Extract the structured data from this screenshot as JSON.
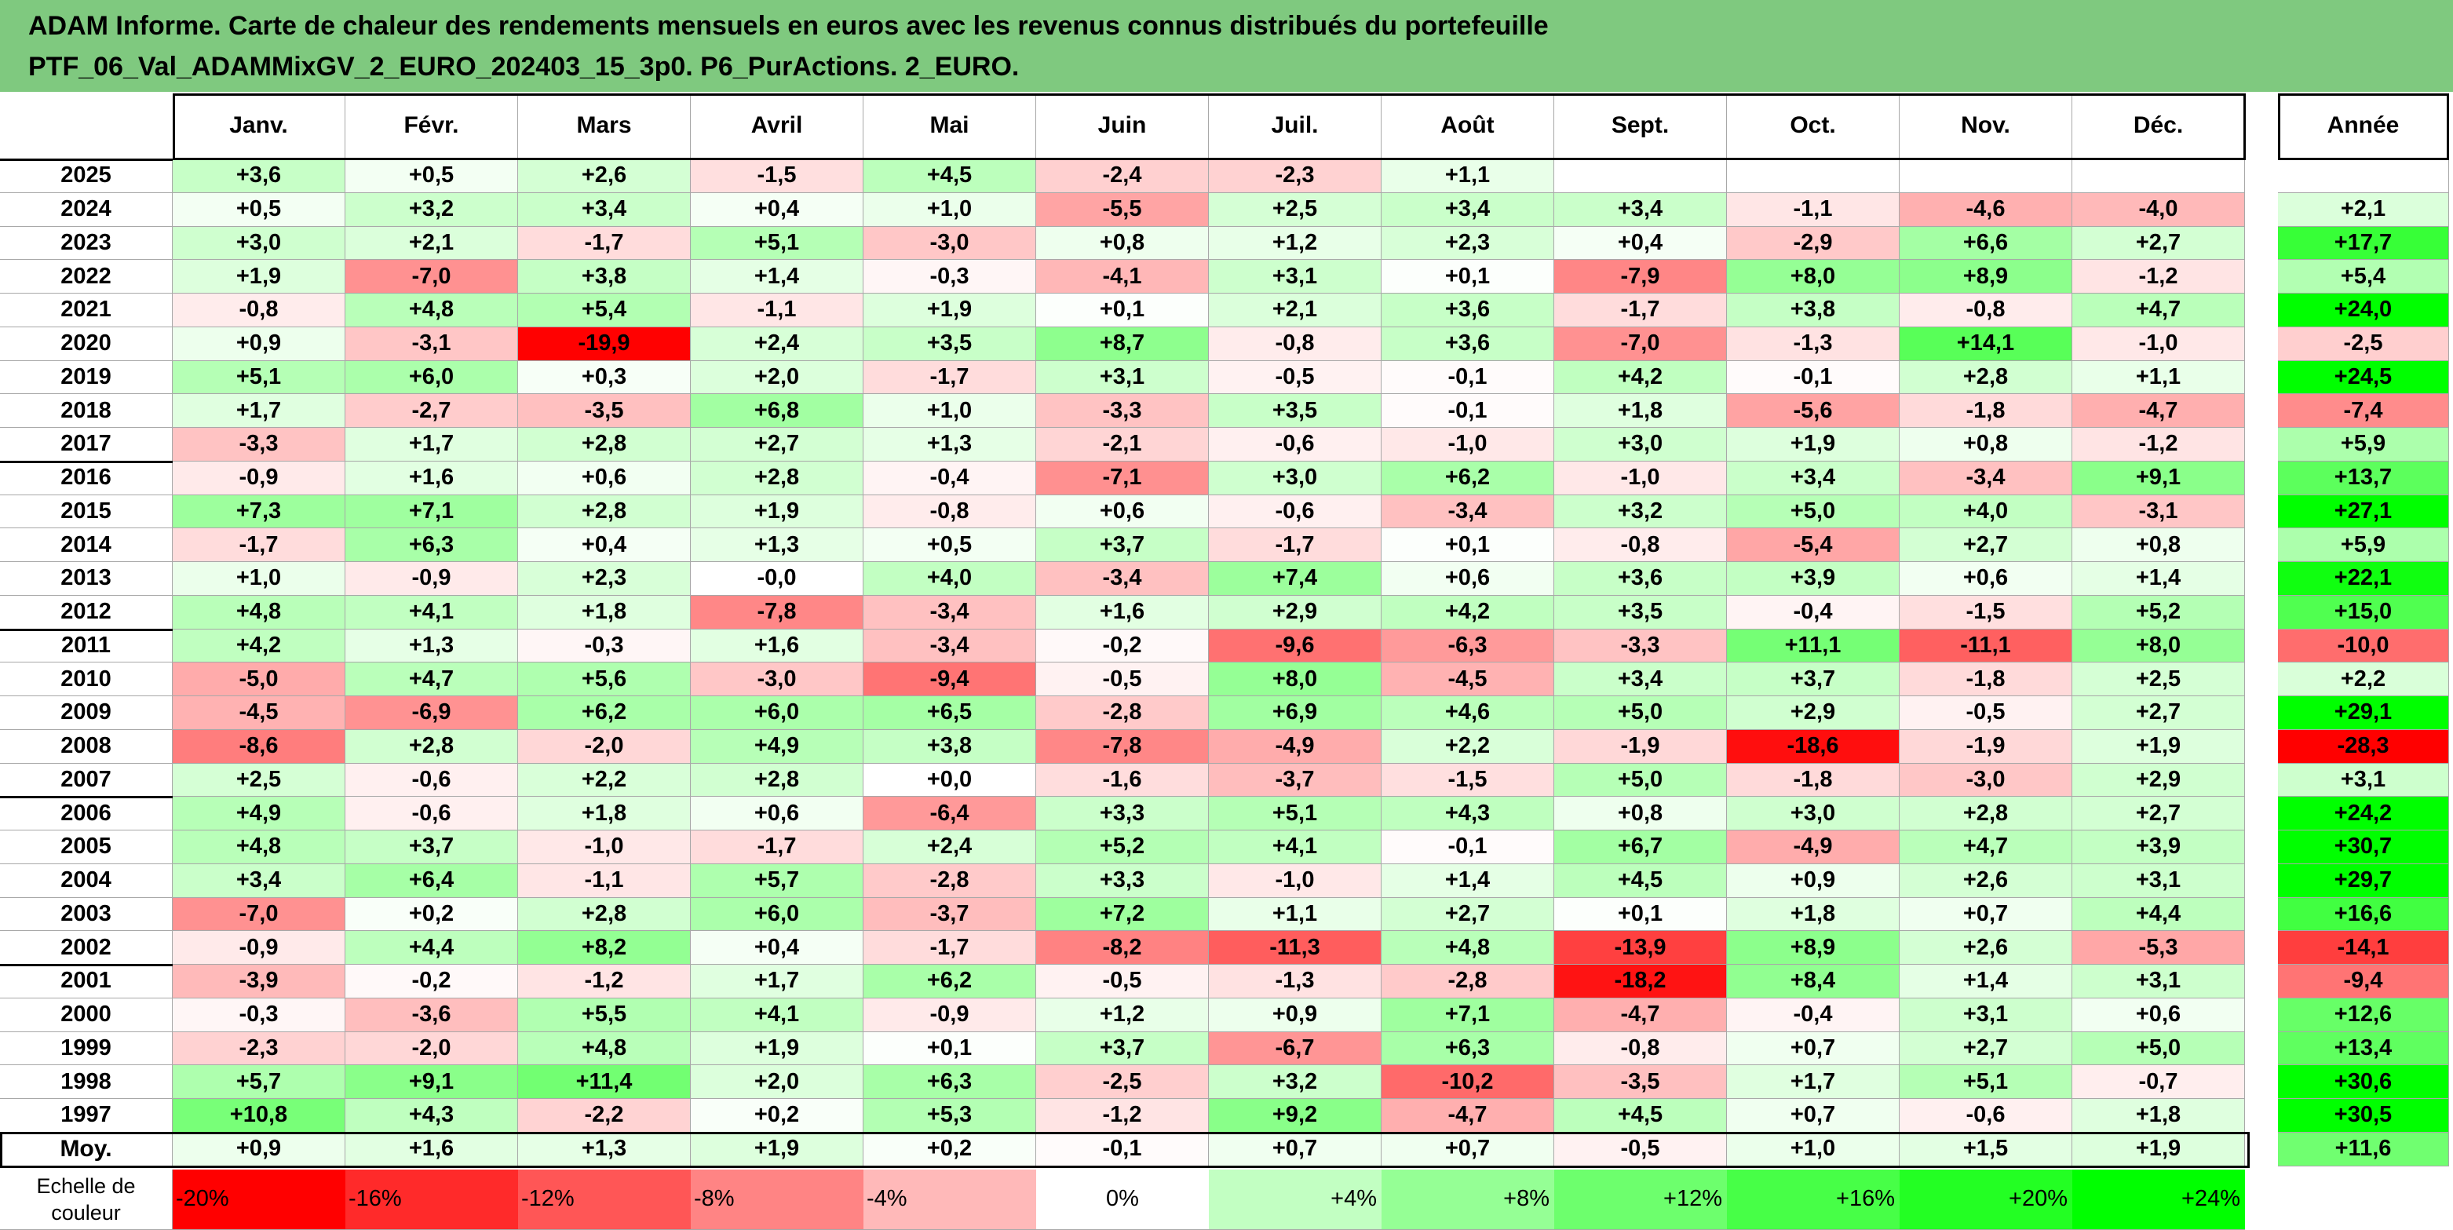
{
  "title": {
    "line1": "ADAM Informe. Carte de chaleur des rendements mensuels en euros avec les revenus connus distribués du portefeuille",
    "line2": "PTF_06_Val_ADAMMixGV_2_EURO_202403_15_3p0. P6_PurActions. 2_EURO."
  },
  "chart_data": {
    "type": "heatmap",
    "months": [
      "Janv.",
      "Févr.",
      "Mars",
      "Avril",
      "Mai",
      "Juin",
      "Juil.",
      "Août",
      "Sept.",
      "Oct.",
      "Nov.",
      "Déc."
    ],
    "year_header": "Année",
    "rows": [
      {
        "year": "2025",
        "months": [
          3.6,
          0.5,
          2.6,
          -1.5,
          4.5,
          -2.4,
          -2.3,
          1.1,
          null,
          null,
          null,
          null
        ],
        "annual": null
      },
      {
        "year": "2024",
        "months": [
          0.5,
          3.2,
          3.4,
          0.4,
          1.0,
          -5.5,
          2.5,
          3.4,
          3.4,
          -1.1,
          -4.6,
          -4.0
        ],
        "annual": 2.1
      },
      {
        "year": "2023",
        "months": [
          3.0,
          2.1,
          -1.7,
          5.1,
          -3.0,
          0.8,
          1.2,
          2.3,
          0.4,
          -2.9,
          6.6,
          2.7
        ],
        "annual": 17.7
      },
      {
        "year": "2022",
        "months": [
          1.9,
          -7.0,
          3.8,
          1.4,
          -0.3,
          -4.1,
          3.1,
          0.1,
          -7.9,
          8.0,
          8.9,
          -1.2
        ],
        "annual": 5.4
      },
      {
        "year": "2021",
        "months": [
          -0.8,
          4.8,
          5.4,
          -1.1,
          1.9,
          0.1,
          2.1,
          3.6,
          -1.7,
          3.8,
          -0.8,
          4.7
        ],
        "annual": 24.0
      },
      {
        "year": "2020",
        "months": [
          0.9,
          -3.1,
          -19.9,
          2.4,
          3.5,
          8.7,
          -0.8,
          3.6,
          -7.0,
          -1.3,
          14.1,
          -1.0
        ],
        "annual": -2.5
      },
      {
        "year": "2019",
        "months": [
          5.1,
          6.0,
          0.3,
          2.0,
          -1.7,
          3.1,
          -0.5,
          -0.1,
          4.2,
          -0.1,
          2.8,
          1.1
        ],
        "annual": 24.5
      },
      {
        "year": "2018",
        "months": [
          1.7,
          -2.7,
          -3.5,
          6.8,
          1.0,
          -3.3,
          3.5,
          -0.1,
          1.8,
          -5.6,
          -1.8,
          -4.7
        ],
        "annual": -7.4
      },
      {
        "year": "2017",
        "months": [
          -3.3,
          1.7,
          2.8,
          2.7,
          1.3,
          -2.1,
          -0.6,
          -1.0,
          3.0,
          1.9,
          0.8,
          -1.2
        ],
        "annual": 5.9
      },
      {
        "year": "2016",
        "months": [
          -0.9,
          1.6,
          0.6,
          2.8,
          -0.4,
          -7.1,
          3.0,
          6.2,
          -1.0,
          3.4,
          -3.4,
          9.1
        ],
        "annual": 13.7
      },
      {
        "year": "2015",
        "months": [
          7.3,
          7.1,
          2.8,
          1.9,
          -0.8,
          0.6,
          -0.6,
          -3.4,
          3.2,
          5.0,
          4.0,
          -3.1
        ],
        "annual": 27.1
      },
      {
        "year": "2014",
        "months": [
          -1.7,
          6.3,
          0.4,
          1.3,
          0.5,
          3.7,
          -1.7,
          0.1,
          -0.8,
          -5.4,
          2.7,
          0.8
        ],
        "annual": 5.9
      },
      {
        "year": "2013",
        "months": [
          1.0,
          -0.9,
          2.3,
          -0.0,
          4.0,
          -3.4,
          7.4,
          0.6,
          3.6,
          3.9,
          0.6,
          1.4
        ],
        "annual": 22.1
      },
      {
        "year": "2012",
        "months": [
          4.8,
          4.1,
          1.8,
          -7.8,
          -3.4,
          1.6,
          2.9,
          4.2,
          3.5,
          -0.4,
          -1.5,
          5.2
        ],
        "annual": 15.0
      },
      {
        "year": "2011",
        "months": [
          4.2,
          1.3,
          -0.3,
          1.6,
          -3.4,
          -0.2,
          -9.6,
          -6.3,
          -3.3,
          11.1,
          -11.1,
          8.0
        ],
        "annual": -10.0
      },
      {
        "year": "2010",
        "months": [
          -5.0,
          4.7,
          5.6,
          -3.0,
          -9.4,
          -0.5,
          8.0,
          -4.5,
          3.4,
          3.7,
          -1.8,
          2.5
        ],
        "annual": 2.2
      },
      {
        "year": "2009",
        "months": [
          -4.5,
          -6.9,
          6.2,
          6.0,
          6.5,
          -2.8,
          6.9,
          4.6,
          5.0,
          2.9,
          -0.5,
          2.7
        ],
        "annual": 29.1
      },
      {
        "year": "2008",
        "months": [
          -8.6,
          2.8,
          -2.0,
          4.9,
          3.8,
          -7.8,
          -4.9,
          2.2,
          -1.9,
          -18.6,
          -1.9,
          1.9
        ],
        "annual": -28.3
      },
      {
        "year": "2007",
        "months": [
          2.5,
          -0.6,
          2.2,
          2.8,
          0.0,
          -1.6,
          -3.7,
          -1.5,
          5.0,
          -1.8,
          -3.0,
          2.9
        ],
        "annual": 3.1
      },
      {
        "year": "2006",
        "months": [
          4.9,
          -0.6,
          1.8,
          0.6,
          -6.4,
          3.3,
          5.1,
          4.3,
          0.8,
          3.0,
          2.8,
          2.7
        ],
        "annual": 24.2
      },
      {
        "year": "2005",
        "months": [
          4.8,
          3.7,
          -1.0,
          -1.7,
          2.4,
          5.2,
          4.1,
          -0.1,
          6.7,
          -4.9,
          4.7,
          3.9
        ],
        "annual": 30.7
      },
      {
        "year": "2004",
        "months": [
          3.4,
          6.4,
          -1.1,
          5.7,
          -2.8,
          3.3,
          -1.0,
          1.4,
          4.5,
          0.9,
          2.6,
          3.1
        ],
        "annual": 29.7
      },
      {
        "year": "2003",
        "months": [
          -7.0,
          0.2,
          2.8,
          6.0,
          -3.7,
          7.2,
          1.1,
          2.7,
          0.1,
          1.8,
          0.7,
          4.4
        ],
        "annual": 16.6
      },
      {
        "year": "2002",
        "months": [
          -0.9,
          4.4,
          8.2,
          0.4,
          -1.7,
          -8.2,
          -11.3,
          4.8,
          -13.9,
          8.9,
          2.6,
          -5.3
        ],
        "annual": -14.1
      },
      {
        "year": "2001",
        "months": [
          -3.9,
          -0.2,
          -1.2,
          1.7,
          6.2,
          -0.5,
          -1.3,
          -2.8,
          -18.2,
          8.4,
          1.4,
          3.1
        ],
        "annual": -9.4
      },
      {
        "year": "2000",
        "months": [
          -0.3,
          -3.6,
          5.5,
          4.1,
          -0.9,
          1.2,
          0.9,
          7.1,
          -4.7,
          -0.4,
          3.1,
          0.6
        ],
        "annual": 12.6
      },
      {
        "year": "1999",
        "months": [
          -2.3,
          -2.0,
          4.8,
          1.9,
          0.1,
          3.7,
          -6.7,
          6.3,
          -0.8,
          0.7,
          2.7,
          5.0
        ],
        "annual": 13.4
      },
      {
        "year": "1998",
        "months": [
          5.7,
          9.1,
          11.4,
          2.0,
          6.3,
          -2.5,
          3.2,
          -10.2,
          -3.5,
          1.7,
          5.1,
          -0.7
        ],
        "annual": 30.6
      },
      {
        "year": "1997",
        "months": [
          10.8,
          4.3,
          -2.2,
          0.2,
          5.3,
          -1.2,
          9.2,
          -4.7,
          4.5,
          0.7,
          -0.6,
          1.8
        ],
        "annual": 30.5
      }
    ],
    "average": {
      "label": "Moy.",
      "months": [
        0.9,
        1.6,
        1.3,
        1.9,
        0.2,
        -0.1,
        0.7,
        0.7,
        -0.5,
        1.0,
        1.5,
        1.9
      ],
      "annual": 11.6
    },
    "scale": {
      "label_line1": "Echelle de",
      "label_line2": "couleur",
      "labels": [
        "-20%",
        "-16%",
        "-12%",
        "-8%",
        "-4%",
        "0%",
        "+4%",
        "+8%",
        "+12%",
        "+16%",
        "+20%",
        "+24%"
      ]
    },
    "colors": {
      "negative_max": "#ff0000",
      "neutral": "#ffffff",
      "positive_max": "#00ff00"
    }
  }
}
